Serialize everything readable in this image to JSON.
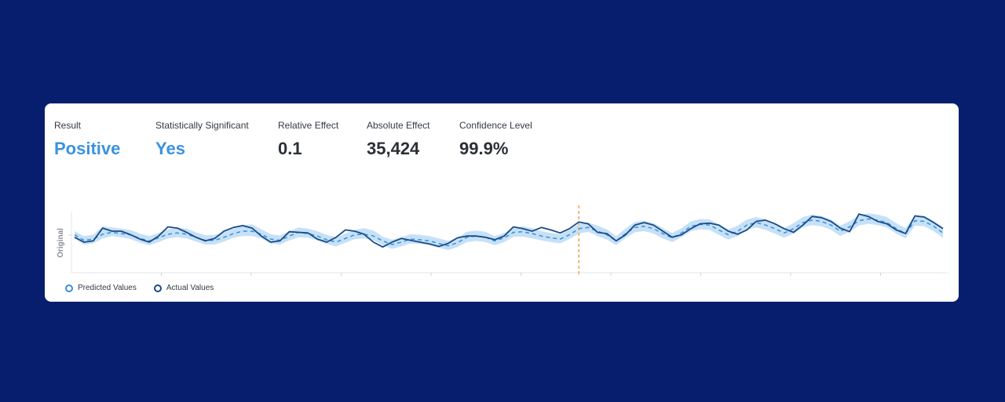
{
  "metrics": {
    "result": {
      "label": "Result",
      "value": "Positive"
    },
    "significant": {
      "label": "Statistically Significant",
      "value": "Yes"
    },
    "relative": {
      "label": "Relative Effect",
      "value": "0.1"
    },
    "absolute": {
      "label": "Absolute Effect",
      "value": "35,424"
    },
    "confidence": {
      "label": "Confidence Level",
      "value": "99.9%"
    }
  },
  "colors": {
    "background": "#071e6e",
    "accent": "#3a93df",
    "predicted": "#3a8fd9",
    "actual": "#1a4a86",
    "band": "#bcdcf6",
    "intervention": "#f0a35c"
  },
  "chart_data": {
    "type": "line",
    "ylabel": "Original",
    "xlabel": "",
    "title": "",
    "grid": false,
    "legend": "bottom-left",
    "intervention_index": 54,
    "ylim": [
      0,
      100
    ],
    "series": [
      {
        "name": "Predicted Values",
        "style": "dashed",
        "values": [
          62,
          53,
          55,
          63,
          66,
          64,
          62,
          56,
          52,
          57,
          63,
          65,
          63,
          58,
          53,
          53,
          58,
          64,
          68,
          68,
          63,
          55,
          53,
          60,
          66,
          64,
          60,
          54,
          50,
          56,
          62,
          63,
          60,
          52,
          46,
          50,
          55,
          54,
          52,
          48,
          44,
          49,
          58,
          60,
          58,
          52,
          57,
          66,
          67,
          64,
          60,
          57,
          55,
          62,
          72,
          74,
          68,
          62,
          52,
          64,
          74,
          76,
          72,
          64,
          57,
          65,
          76,
          79,
          78,
          70,
          62,
          68,
          78,
          82,
          78,
          72,
          65,
          72,
          82,
          86,
          84,
          78,
          68,
          75,
          85,
          88,
          86,
          82,
          72,
          64,
          85,
          84,
          76,
          65
        ]
      },
      {
        "name": "Actual Values",
        "style": "solid",
        "values": [
          58,
          50,
          52,
          73,
          68,
          68,
          62,
          55,
          50,
          60,
          75,
          73,
          66,
          58,
          52,
          56,
          68,
          74,
          77,
          73,
          60,
          50,
          52,
          67,
          66,
          65,
          55,
          50,
          58,
          70,
          68,
          63,
          50,
          42,
          50,
          56,
          53,
          50,
          47,
          43,
          48,
          57,
          60,
          60,
          58,
          54,
          60,
          75,
          72,
          68,
          74,
          70,
          65,
          72,
          83,
          80,
          66,
          64,
          52,
          62,
          78,
          82,
          78,
          68,
          58,
          62,
          72,
          80,
          81,
          78,
          68,
          63,
          70,
          84,
          86,
          80,
          72,
          66,
          78,
          92,
          90,
          84,
          73,
          67,
          96,
          92,
          84,
          80,
          70,
          64,
          93,
          91,
          82,
          72
        ]
      }
    ],
    "band": {
      "upper": [
        68,
        60,
        62,
        76,
        74,
        72,
        70,
        64,
        60,
        65,
        71,
        74,
        72,
        66,
        61,
        62,
        66,
        72,
        78,
        79,
        71,
        63,
        61,
        68,
        74,
        72,
        68,
        62,
        58,
        64,
        70,
        73,
        69,
        59,
        54,
        58,
        63,
        62,
        60,
        56,
        52,
        57,
        67,
        69,
        67,
        60,
        65,
        73,
        76,
        73,
        68,
        65,
        63,
        70,
        80,
        82,
        77,
        71,
        60,
        72,
        83,
        85,
        81,
        73,
        65,
        73,
        84,
        88,
        87,
        79,
        71,
        77,
        87,
        91,
        87,
        81,
        73,
        81,
        91,
        95,
        93,
        87,
        77,
        84,
        94,
        97,
        95,
        91,
        81,
        73,
        94,
        93,
        85,
        74
      ],
      "lower": [
        56,
        46,
        48,
        56,
        60,
        58,
        55,
        49,
        45,
        50,
        56,
        58,
        56,
        51,
        46,
        46,
        51,
        57,
        60,
        60,
        56,
        48,
        46,
        53,
        58,
        57,
        53,
        47,
        43,
        49,
        55,
        56,
        53,
        45,
        39,
        43,
        48,
        47,
        45,
        41,
        37,
        42,
        50,
        52,
        50,
        45,
        50,
        59,
        59,
        56,
        53,
        50,
        48,
        55,
        64,
        67,
        60,
        54,
        45,
        57,
        66,
        68,
        64,
        56,
        50,
        58,
        68,
        71,
        70,
        62,
        54,
        60,
        70,
        74,
        70,
        64,
        57,
        64,
        74,
        78,
        76,
        70,
        60,
        67,
        77,
        80,
        78,
        74,
        64,
        56,
        77,
        76,
        68,
        57
      ]
    }
  }
}
